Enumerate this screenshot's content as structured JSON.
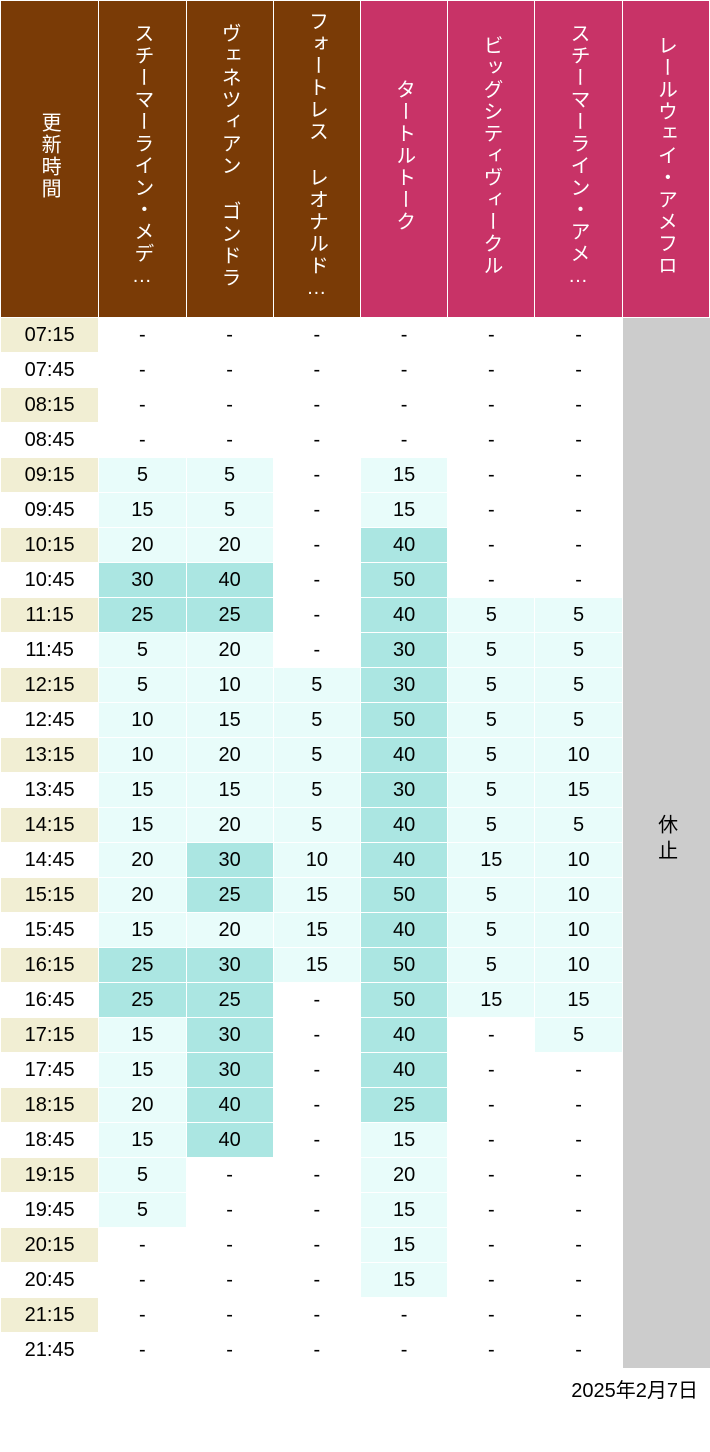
{
  "colors": {
    "header_brown": "#7a3b06",
    "header_pink": "#c83367",
    "time_odd": "#f1eed3",
    "time_even": "#ffffff",
    "closed_bg": "#cccccc",
    "thresholds": [
      {
        "max": 0,
        "bg": "#ffffff"
      },
      {
        "max": 20,
        "bg": "#e8fcfa"
      },
      {
        "max": 99,
        "bg": "#abe6e2"
      }
    ]
  },
  "columns": [
    {
      "key": "time",
      "label": "更新時間",
      "color_key": "header_brown",
      "type": "time"
    },
    {
      "key": "c1",
      "label": "スチーマーライン・メデ…",
      "color_key": "header_brown",
      "type": "data"
    },
    {
      "key": "c2",
      "label": "ヴェネツィアン ゴンドラ",
      "color_key": "header_brown",
      "type": "data"
    },
    {
      "key": "c3",
      "label": "フォートレス レオナルド…",
      "color_key": "header_brown",
      "type": "data"
    },
    {
      "key": "c4",
      "label": "タートルトーク",
      "color_key": "header_pink",
      "type": "data"
    },
    {
      "key": "c5",
      "label": "ビッグシティヴィークル",
      "color_key": "header_pink",
      "type": "data"
    },
    {
      "key": "c6",
      "label": "スチーマーライン・アメ…",
      "color_key": "header_pink",
      "type": "data"
    },
    {
      "key": "c7",
      "label": "レールウェイ・アメフロ",
      "color_key": "header_pink",
      "type": "closed"
    }
  ],
  "closed_label": "休止",
  "times": [
    "07:15",
    "07:45",
    "08:15",
    "08:45",
    "09:15",
    "09:45",
    "10:15",
    "10:45",
    "11:15",
    "11:45",
    "12:15",
    "12:45",
    "13:15",
    "13:45",
    "14:15",
    "14:45",
    "15:15",
    "15:45",
    "16:15",
    "16:45",
    "17:15",
    "17:45",
    "18:15",
    "18:45",
    "19:15",
    "19:45",
    "20:15",
    "20:45",
    "21:15",
    "21:45"
  ],
  "values": {
    "c1": [
      null,
      null,
      null,
      null,
      5,
      15,
      20,
      30,
      25,
      5,
      5,
      10,
      10,
      15,
      15,
      20,
      20,
      15,
      25,
      25,
      15,
      15,
      20,
      15,
      5,
      5,
      null,
      null,
      null,
      null
    ],
    "c2": [
      null,
      null,
      null,
      null,
      5,
      5,
      20,
      40,
      25,
      20,
      10,
      15,
      20,
      15,
      20,
      30,
      25,
      20,
      30,
      25,
      30,
      30,
      40,
      40,
      null,
      null,
      null,
      null,
      null,
      null
    ],
    "c3": [
      null,
      null,
      null,
      null,
      null,
      null,
      null,
      null,
      null,
      null,
      5,
      5,
      5,
      5,
      5,
      10,
      15,
      15,
      15,
      null,
      null,
      null,
      null,
      null,
      null,
      null,
      null,
      null,
      null,
      null
    ],
    "c4": [
      null,
      null,
      null,
      null,
      15,
      15,
      40,
      50,
      40,
      30,
      30,
      50,
      40,
      30,
      40,
      40,
      50,
      40,
      50,
      50,
      40,
      40,
      25,
      15,
      20,
      15,
      15,
      15,
      null,
      null
    ],
    "c5": [
      null,
      null,
      null,
      null,
      null,
      null,
      null,
      null,
      5,
      5,
      5,
      5,
      5,
      5,
      5,
      15,
      5,
      5,
      5,
      15,
      null,
      null,
      null,
      null,
      null,
      null,
      null,
      null,
      null,
      null
    ],
    "c6": [
      null,
      null,
      null,
      null,
      null,
      null,
      null,
      null,
      5,
      5,
      5,
      5,
      10,
      15,
      5,
      10,
      10,
      10,
      10,
      15,
      5,
      null,
      null,
      null,
      null,
      null,
      null,
      null,
      null,
      null
    ]
  },
  "date_label": "2025年2月7日"
}
